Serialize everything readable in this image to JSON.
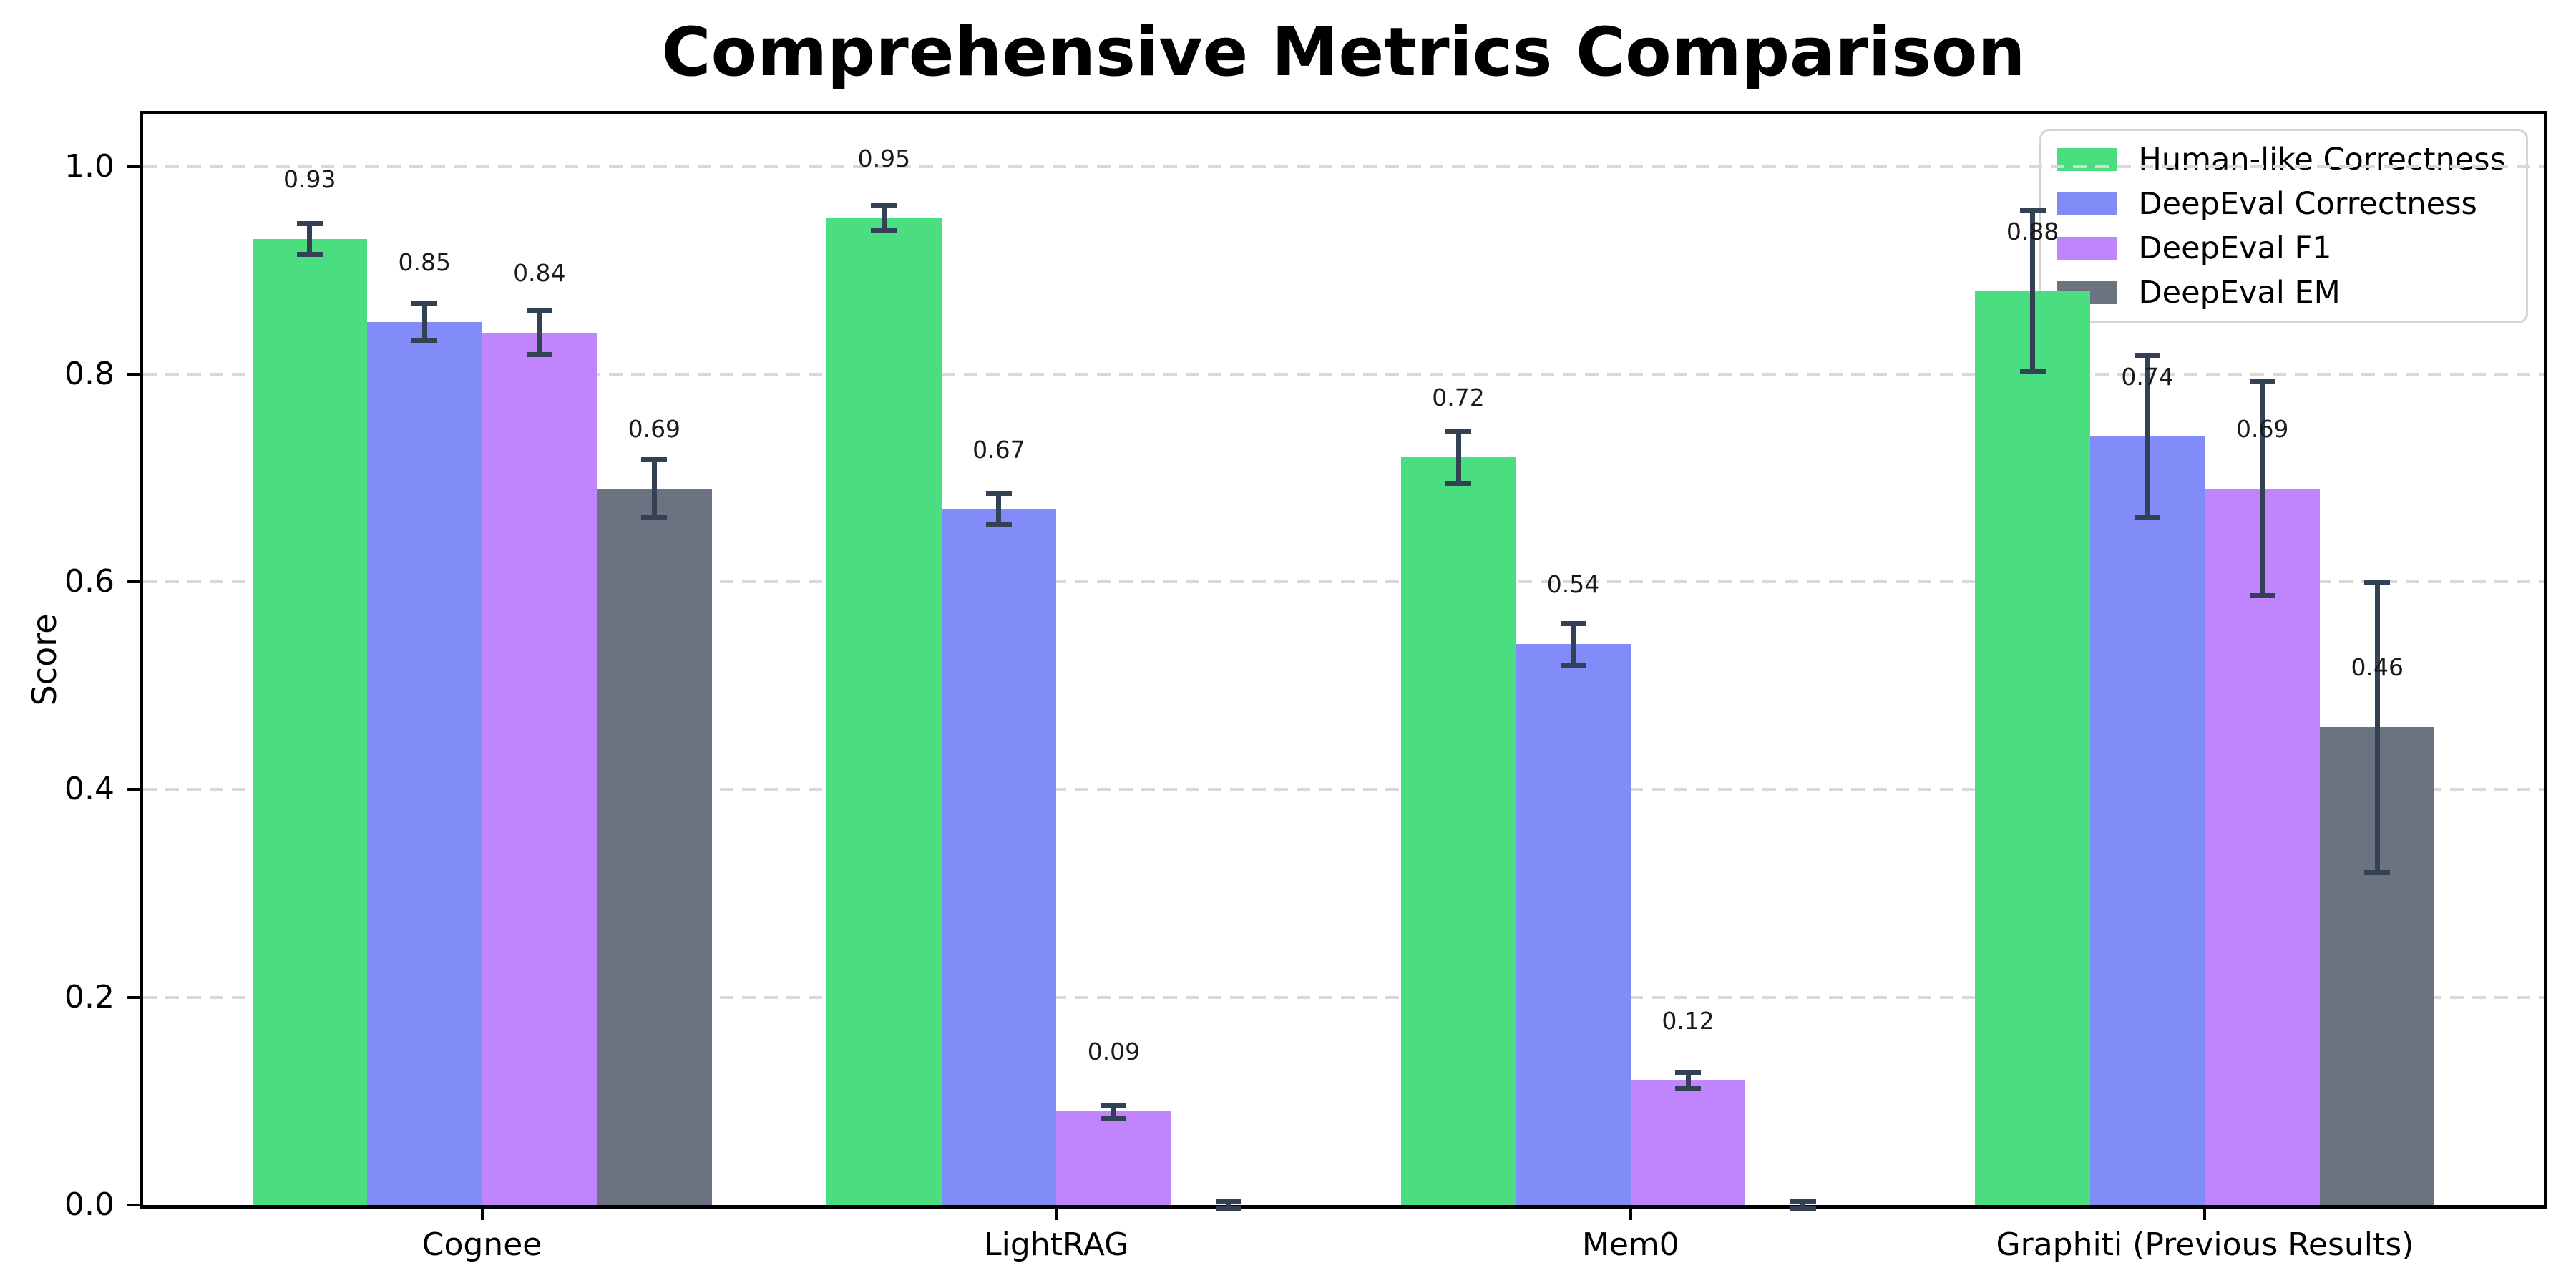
{
  "chart_data": {
    "type": "bar",
    "title": "Comprehensive Metrics Comparison",
    "xlabel": "",
    "ylabel": "Score",
    "categories": [
      "Cognee",
      "LightRAG",
      "Mem0",
      "Graphiti (Previous Results)"
    ],
    "ylim": [
      0,
      1.05
    ],
    "yticks": [
      0.0,
      0.2,
      0.4,
      0.6,
      0.8,
      1.0
    ],
    "grid": "horizontal dashed",
    "legend_position": "upper right",
    "series": [
      {
        "name": "Human-like Correctness",
        "color": "#4ade80",
        "values": [
          0.93,
          0.95,
          0.72,
          0.88
        ],
        "errors": [
          0.015,
          0.012,
          0.025,
          0.078
        ],
        "labels": [
          "0.93",
          "0.95",
          "0.72",
          "0.88"
        ]
      },
      {
        "name": "DeepEval Correctness",
        "color": "#818cf8",
        "values": [
          0.85,
          0.67,
          0.54,
          0.74
        ],
        "errors": [
          0.018,
          0.015,
          0.02,
          0.078
        ],
        "labels": [
          "0.85",
          "0.67",
          "0.54",
          "0.74"
        ]
      },
      {
        "name": "DeepEval F1",
        "color": "#c084fc",
        "values": [
          0.84,
          0.09,
          0.12,
          0.69
        ],
        "errors": [
          0.021,
          0.006,
          0.008,
          0.103
        ],
        "labels": [
          "0.84",
          "0.09",
          "0.12",
          "0.69"
        ]
      },
      {
        "name": "DeepEval EM",
        "color": "#6b7280",
        "values": [
          0.69,
          0.0,
          0.0,
          0.46
        ],
        "errors": [
          0.028,
          0.004,
          0.004,
          0.14
        ],
        "labels": [
          "0.69",
          "",
          "",
          "0.46"
        ]
      }
    ],
    "colors": {
      "error_bar": "#334155",
      "grid": "#d9d9d9",
      "axis": "#000000",
      "background": "#ffffff"
    }
  }
}
